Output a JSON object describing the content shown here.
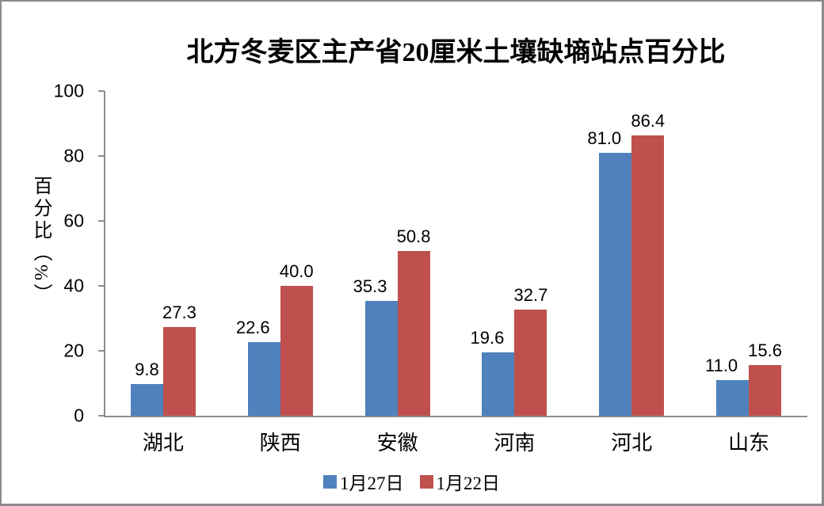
{
  "chart_data": {
    "type": "bar",
    "title": "北方冬麦区主产省20厘米土壤缺墒站点百分比",
    "ylabel": "百分比（%）",
    "xlabel": "",
    "categories": [
      "湖北",
      "陕西",
      "安徽",
      "河南",
      "河北",
      "山东"
    ],
    "series": [
      {
        "name": "1月27日",
        "color": "#4F81BD",
        "values": [
          9.8,
          22.6,
          35.3,
          19.6,
          81.0,
          11.0
        ],
        "labels": [
          "9.8",
          "22.6",
          "35.3",
          "19.6",
          "81.0",
          "11.0"
        ]
      },
      {
        "name": "1月22日",
        "color": "#C0504D",
        "values": [
          27.3,
          40.0,
          50.8,
          32.7,
          86.4,
          15.6
        ],
        "labels": [
          "27.3",
          "40.0",
          "50.8",
          "32.7",
          "86.4",
          "15.6"
        ]
      }
    ],
    "ylim": [
      0,
      100
    ],
    "yticks": [
      0,
      20,
      40,
      60,
      80,
      100
    ],
    "grid": false,
    "data_labels": "outside-end",
    "legend_position": "bottom",
    "axis_color": "#8E8E8E"
  }
}
